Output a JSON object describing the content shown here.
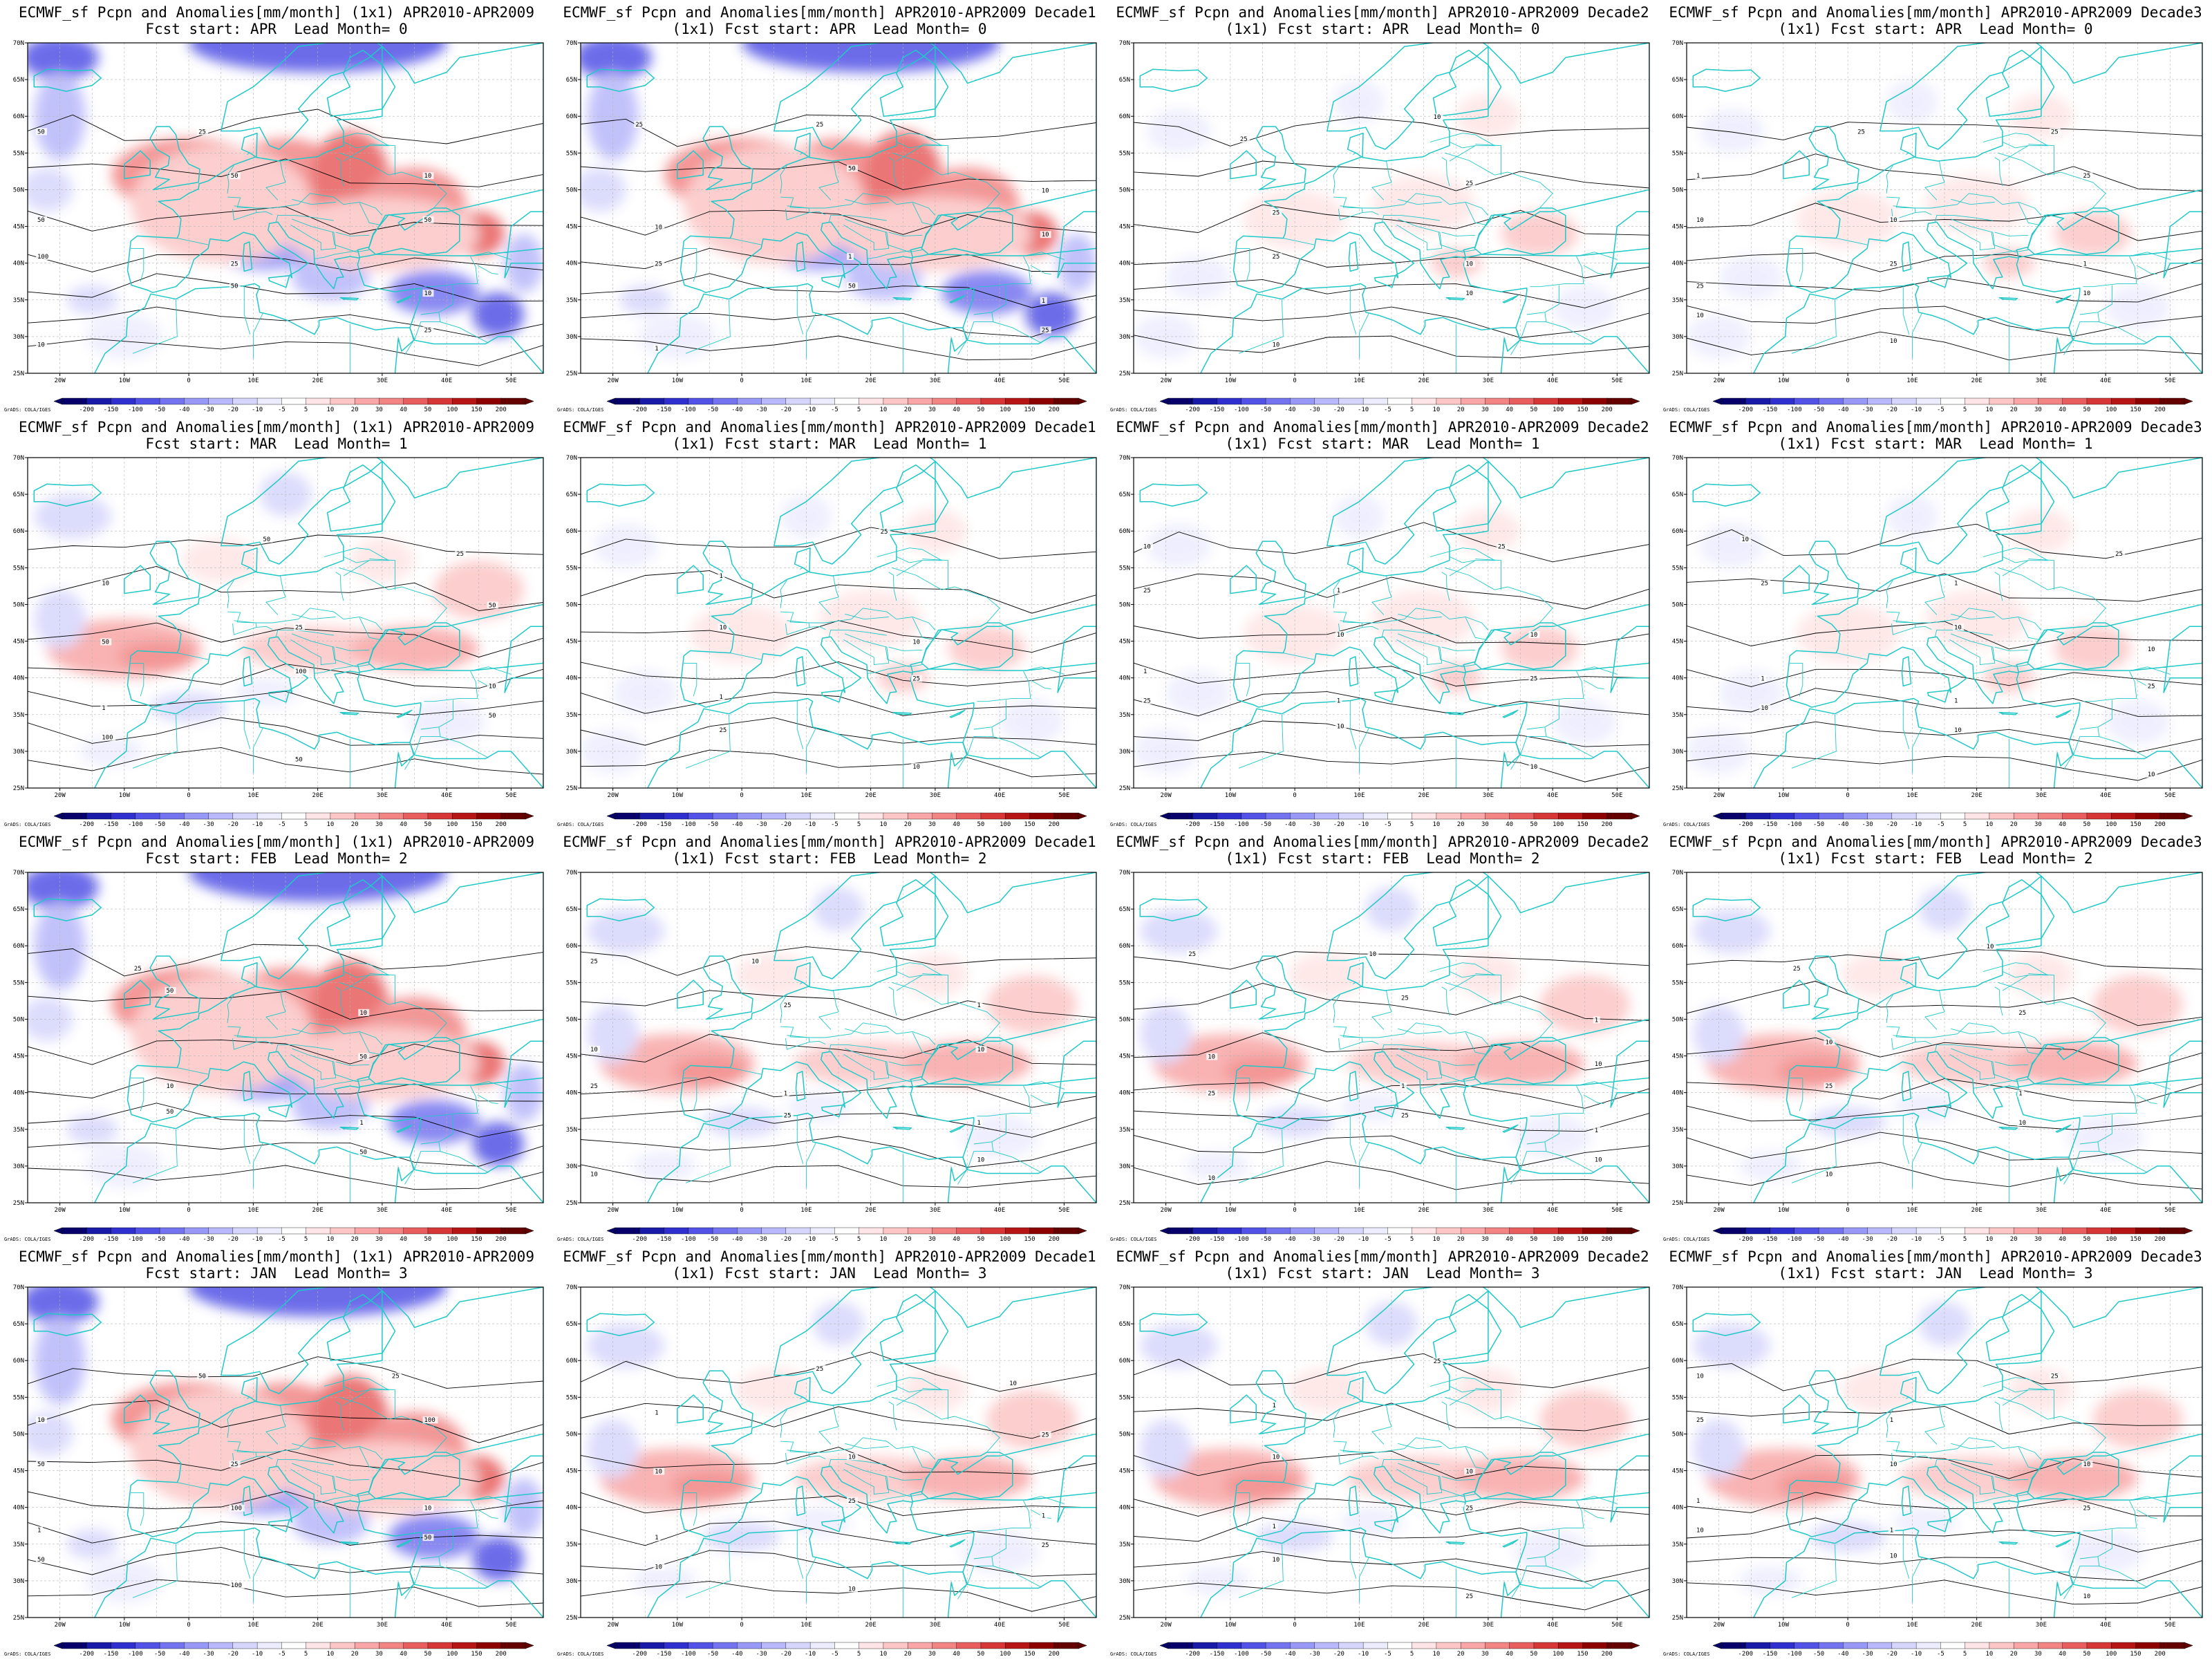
{
  "figure": {
    "title_first_line_prefix": "ECMWF_sf Pcpn and Anomalies[mm/month]",
    "region": {
      "lon_min": -25,
      "lon_max": 55,
      "lat_min": 25,
      "lat_max": 70
    },
    "lon_ticks": [
      "20W",
      "10W",
      "0",
      "10E",
      "20E",
      "30E",
      "40E",
      "50E"
    ],
    "lat_ticks": [
      "25N",
      "30N",
      "35N",
      "40N",
      "45N",
      "50N",
      "55N",
      "60N",
      "65N",
      "70N"
    ],
    "colorbar": {
      "labels": [
        "-200",
        "-150",
        "-100",
        "-50",
        "-40",
        "-30",
        "-20",
        "-10",
        "-5",
        "5",
        "10",
        "20",
        "30",
        "40",
        "50",
        "100",
        "150",
        "200"
      ],
      "colors": [
        "#08006b",
        "#1a1aa8",
        "#3030d0",
        "#5252e6",
        "#7474f0",
        "#9898f6",
        "#b8b8fa",
        "#d6d6fc",
        "#ececfe",
        "#ffffff",
        "#fee4e4",
        "#fcc6c6",
        "#f8a6a6",
        "#f28484",
        "#e85e5e",
        "#d63636",
        "#b81616",
        "#8c0000",
        "#640000"
      ]
    },
    "credit": "GrADS: COLA/IGES",
    "coast_color": "#20c8c8",
    "contour_color": "#000000"
  },
  "panels": [
    {
      "title1": "ECMWF_sf Pcpn and Anomalies[mm/month] (1x1) APR2010-APR2009",
      "title2": "Fcst start: APR  Lead Month= 0",
      "anom": "strong",
      "contour_labels": [
        "50",
        "50",
        "50",
        "100",
        "50",
        "25",
        "10",
        "25",
        "10",
        "50",
        "25",
        "10"
      ]
    },
    {
      "title1": "ECMWF_sf Pcpn and Anomalies[mm/month] APR2010-APR2009 Decade1",
      "title2": "(1x1) Fcst start: APR  Lead Month= 0",
      "anom": "strong",
      "contour_labels": [
        "25",
        "50",
        "10",
        "25",
        "50",
        "25",
        "1",
        "25",
        "10",
        "10",
        "1",
        "1"
      ]
    },
    {
      "title1": "ECMWF_sf Pcpn and Anomalies[mm/month] APR2010-APR2009 Decade2",
      "title2": "(1x1) Fcst start: APR  Lead Month= 0",
      "anom": "weak",
      "contour_labels": [
        "25",
        "25",
        "10",
        "25",
        "10",
        "10",
        "10",
        "10",
        "1",
        "25",
        "10",
        "1"
      ]
    },
    {
      "title1": "ECMWF_sf Pcpn and Anomalies[mm/month] APR2010-APR2009 Decade3",
      "title2": "(1x1) Fcst start: APR  Lead Month= 0",
      "anom": "weak",
      "contour_labels": [
        "25",
        "25",
        "10",
        "25",
        "10",
        "10",
        "10",
        "25",
        "1",
        "10",
        "1",
        "25"
      ]
    },
    {
      "title1": "ECMWF_sf Pcpn and Anomalies[mm/month] (1x1) APR2010-APR2009",
      "title2": "Fcst start: MAR  Lead Month= 1",
      "anom": "medium",
      "contour_labels": [
        "50",
        "50",
        "50",
        "100",
        "50",
        "100",
        "50",
        "25",
        "10",
        "25",
        "10",
        "1"
      ]
    },
    {
      "title1": "ECMWF_sf Pcpn and Anomalies[mm/month] APR2010-APR2009 Decade1",
      "title2": "(1x1) Fcst start: MAR  Lead Month= 1",
      "anom": "weak",
      "contour_labels": [
        "25",
        "25",
        "10",
        "25",
        "10",
        "25",
        "10",
        "10",
        "1",
        "10",
        "1",
        "1"
      ]
    },
    {
      "title1": "ECMWF_sf Pcpn and Anomalies[mm/month] APR2010-APR2009 Decade2",
      "title2": "(1x1) Fcst start: MAR  Lead Month= 1",
      "anom": "weak",
      "contour_labels": [
        "25",
        "25",
        "10",
        "25",
        "25",
        "10",
        "10",
        "10",
        "1",
        "10",
        "1",
        "1"
      ]
    },
    {
      "title1": "ECMWF_sf Pcpn and Anomalies[mm/month] APR2010-APR2009 Decade3",
      "title2": "(1x1) Fcst start: MAR  Lead Month= 1",
      "anom": "weak",
      "contour_labels": [
        "25",
        "25",
        "10",
        "25",
        "10",
        "10",
        "10",
        "10",
        "1",
        "10",
        "1",
        "1"
      ]
    },
    {
      "title1": "ECMWF_sf Pcpn and Anomalies[mm/month] (1x1) APR2010-APR2009",
      "title2": "Fcst start: FEB  Lead Month= 2",
      "anom": "strong",
      "contour_labels": [
        "50",
        "50",
        "50",
        "100",
        "50",
        "50",
        "50",
        "25",
        "10",
        "25",
        "10",
        "1"
      ]
    },
    {
      "title1": "ECMWF_sf Pcpn and Anomalies[mm/month] APR2010-APR2009 Decade1",
      "title2": "(1x1) Fcst start: FEB  Lead Month= 2",
      "anom": "medium",
      "contour_labels": [
        "25",
        "25",
        "10",
        "25",
        "25",
        "10",
        "10",
        "10",
        "1",
        "10",
        "1",
        "1"
      ]
    },
    {
      "title1": "ECMWF_sf Pcpn and Anomalies[mm/month] APR2010-APR2009 Decade2",
      "title2": "(1x1) Fcst start: FEB  Lead Month= 2",
      "anom": "medium",
      "contour_labels": [
        "25",
        "25",
        "10",
        "25",
        "25",
        "10",
        "10",
        "10",
        "1",
        "10",
        "1",
        "1"
      ]
    },
    {
      "title1": "ECMWF_sf Pcpn and Anomalies[mm/month] APR2010-APR2009 Decade3",
      "title2": "(1x1) Fcst start: FEB  Lead Month= 2",
      "anom": "medium",
      "contour_labels": [
        "25",
        "25",
        "10",
        "25",
        "10",
        "10",
        "10",
        "10",
        "1",
        "10",
        "1",
        "1"
      ]
    },
    {
      "title1": "ECMWF_sf Pcpn and Anomalies[mm/month] (1x1) APR2010-APR2009",
      "title2": "Fcst start: JAN  Lead Month= 3",
      "anom": "strong",
      "contour_labels": [
        "50",
        "100",
        "50",
        "100",
        "50",
        "50",
        "100",
        "25",
        "10",
        "25",
        "10",
        "1"
      ]
    },
    {
      "title1": "ECMWF_sf Pcpn and Anomalies[mm/month] APR2010-APR2009 Decade1",
      "title2": "(1x1) Fcst start: JAN  Lead Month= 3",
      "anom": "medium",
      "contour_labels": [
        "25",
        "25",
        "10",
        "25",
        "25",
        "10",
        "10",
        "10",
        "1",
        "10",
        "1",
        "1"
      ]
    },
    {
      "title1": "ECMWF_sf Pcpn and Anomalies[mm/month] APR2010-APR2009 Decade2",
      "title2": "(1x1) Fcst start: JAN  Lead Month= 3",
      "anom": "medium",
      "contour_labels": [
        "25",
        "25",
        "10",
        "25",
        "10",
        "10",
        "25",
        "10",
        "1",
        "10",
        "1",
        "1"
      ]
    },
    {
      "title1": "ECMWF_sf Pcpn and Anomalies[mm/month] APR2010-APR2009 Decade3",
      "title2": "(1x1) Fcst start: JAN  Lead Month= 3",
      "anom": "medium",
      "contour_labels": [
        "25",
        "25",
        "10",
        "25",
        "10",
        "10",
        "10",
        "10",
        "1",
        "10",
        "1",
        "1"
      ]
    }
  ]
}
